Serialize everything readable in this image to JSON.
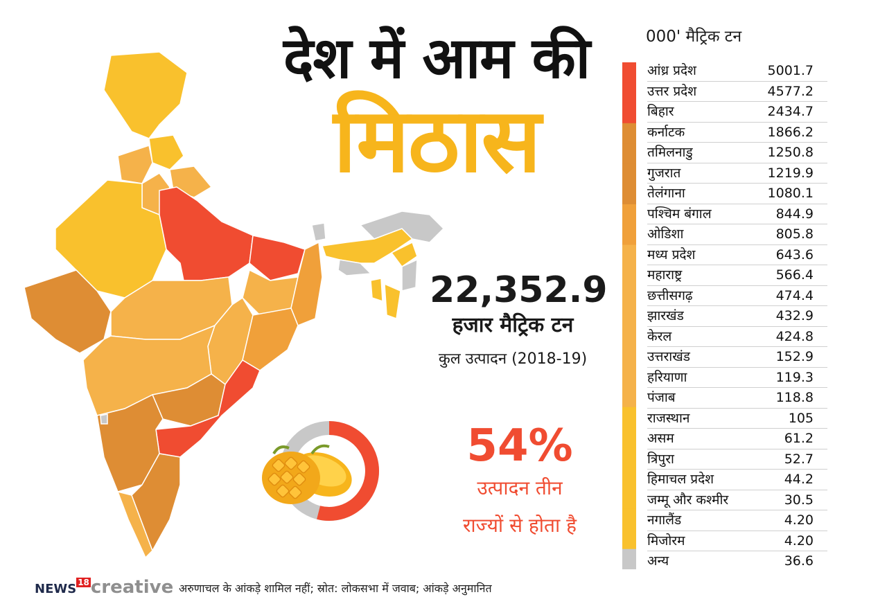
{
  "header": {
    "title_line1": "देश में आम की",
    "title_line2": "मिठास"
  },
  "summary": {
    "total_value": "22,352.9",
    "total_unit": "हजार मैट्रिक टन",
    "total_caption": "कुल उत्पादन (2018-19)",
    "share_percent": "54%",
    "share_caption_line1": "उत्पादन तीन",
    "share_caption_line2": "राज्यों से होता है"
  },
  "chart_data": {
    "type": "table",
    "unit_label": "000' मैट्रिक टन",
    "rows": [
      {
        "state": "आंध्र प्रदेश",
        "value": "5001.7",
        "color": "#f04c31"
      },
      {
        "state": "उत्तर प्रदेश",
        "value": "4577.2",
        "color": "#f04c31"
      },
      {
        "state": "बिहार",
        "value": "2434.7",
        "color": "#f04c31"
      },
      {
        "state": "कर्नाटक",
        "value": "1866.2",
        "color": "#de8d34"
      },
      {
        "state": "तमिलनाडु",
        "value": "1250.8",
        "color": "#de8d34"
      },
      {
        "state": "गुजरात",
        "value": "1219.9",
        "color": "#de8d34"
      },
      {
        "state": "तेलंगाना",
        "value": "1080.1",
        "color": "#de8d34"
      },
      {
        "state": "पश्चिम बंगाल",
        "value": "844.9",
        "color": "#f0a03a"
      },
      {
        "state": "ओडिशा",
        "value": "805.8",
        "color": "#f0a03a"
      },
      {
        "state": "मध्य प्रदेश",
        "value": "643.6",
        "color": "#f5b24a"
      },
      {
        "state": "महाराष्ट्र",
        "value": "566.4",
        "color": "#f5b24a"
      },
      {
        "state": "छत्तीसगढ़",
        "value": "474.4",
        "color": "#f5b24a"
      },
      {
        "state": "झारखंड",
        "value": "432.9",
        "color": "#f5b24a"
      },
      {
        "state": "केरल",
        "value": "424.8",
        "color": "#f5b24a"
      },
      {
        "state": "उत्तराखंड",
        "value": "152.9",
        "color": "#f5b24a"
      },
      {
        "state": "हरियाणा",
        "value": "119.3",
        "color": "#f5b24a"
      },
      {
        "state": "पंजाब",
        "value": "118.8",
        "color": "#f5b24a"
      },
      {
        "state": "राजस्थान",
        "value": "105",
        "color": "#f9c12d"
      },
      {
        "state": "असम",
        "value": "61.2",
        "color": "#f9c12d"
      },
      {
        "state": "त्रिपुरा",
        "value": "52.7",
        "color": "#f9c12d"
      },
      {
        "state": "हिमाचल प्रदेश",
        "value": "44.2",
        "color": "#f9c12d"
      },
      {
        "state": "जम्मू और कश्मीर",
        "value": "30.5",
        "color": "#f9c12d"
      },
      {
        "state": "नगालैंड",
        "value": "4.20",
        "color": "#f9c12d"
      },
      {
        "state": "मिजोरम",
        "value": "4.20",
        "color": "#f9c12d"
      },
      {
        "state": "अन्य",
        "value": "36.6",
        "color": "#c8c8c8"
      }
    ],
    "donut": {
      "share": 0.54,
      "color": "#f04c31",
      "rest_color": "#c8c8c8"
    }
  },
  "map_colors": {
    "top": "#f04c31",
    "high": "#de8d34",
    "mid_high": "#f0a03a",
    "mid": "#f5b24a",
    "low": "#f9c12d",
    "na": "#c8c8c8"
  },
  "footer": {
    "brand_news": "NEWS",
    "brand_num": "18",
    "brand_creative": "creative",
    "note": "अरुणाचल के आंकड़े शामिल नहीं; स्रोत: लोकसभा में जवाब; आंकड़े अनुमानित"
  }
}
